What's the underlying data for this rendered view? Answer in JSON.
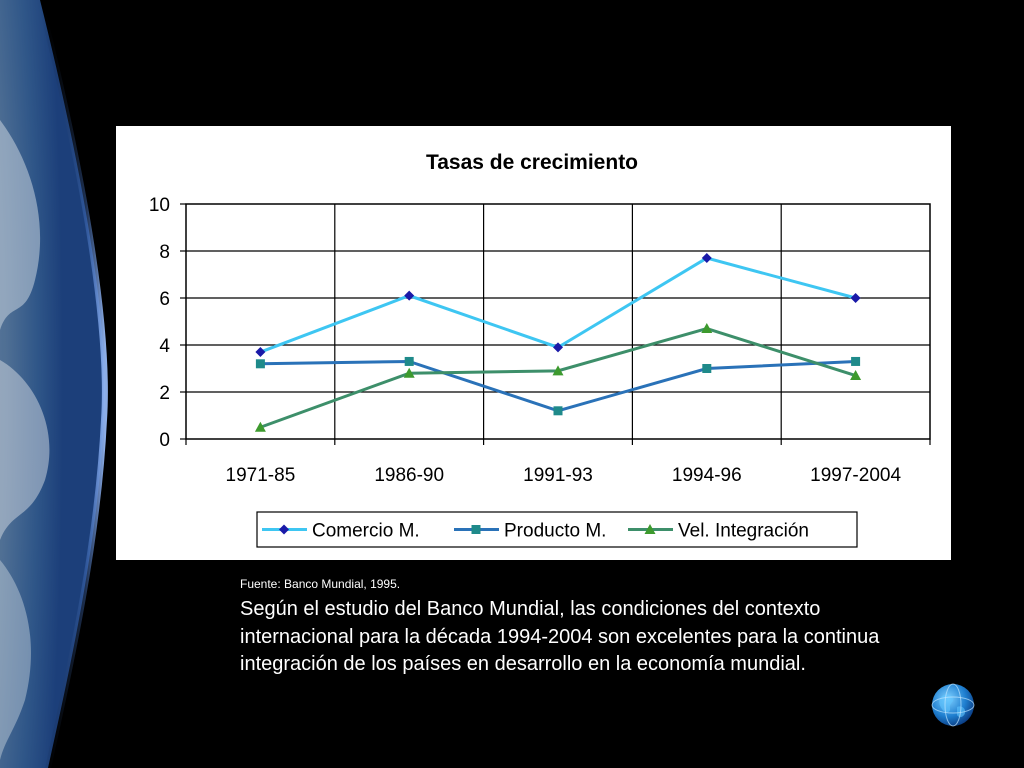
{
  "chart_data": {
    "type": "line",
    "title": "Tasas de crecimiento",
    "categories": [
      "1971-85",
      "1986-90",
      "1991-93",
      "1994-96",
      "1997-2004"
    ],
    "ylim": [
      0,
      10
    ],
    "yticks": [
      0,
      2,
      4,
      6,
      8,
      10
    ],
    "grid": true,
    "legend_position": "bottom",
    "series": [
      {
        "name": "Comercio M.",
        "values": [
          3.7,
          6.1,
          3.9,
          7.7,
          6.0
        ],
        "color": "#3ec6f2",
        "marker": "diamond",
        "marker_color": "#1a1aa8"
      },
      {
        "name": "Producto M.",
        "values": [
          3.2,
          3.3,
          1.2,
          3.0,
          3.3
        ],
        "color": "#2a72b8",
        "marker": "square",
        "marker_color": "#1f8a8a"
      },
      {
        "name": "Vel. Integración",
        "values": [
          0.5,
          2.8,
          2.9,
          4.7,
          2.7
        ],
        "color": "#3d8f6a",
        "marker": "triangle",
        "marker_color": "#3d9a2e"
      }
    ]
  },
  "source_note": "Fuente: Banco Mundial, 1995.",
  "caption": "Según el estudio del Banco Mundial, las condiciones del contexto internacional para la década 1994-2004 son excelentes para la continua integración de los países en desarrollo en la economía mundial.",
  "icons": {
    "globe": "globe-icon"
  }
}
